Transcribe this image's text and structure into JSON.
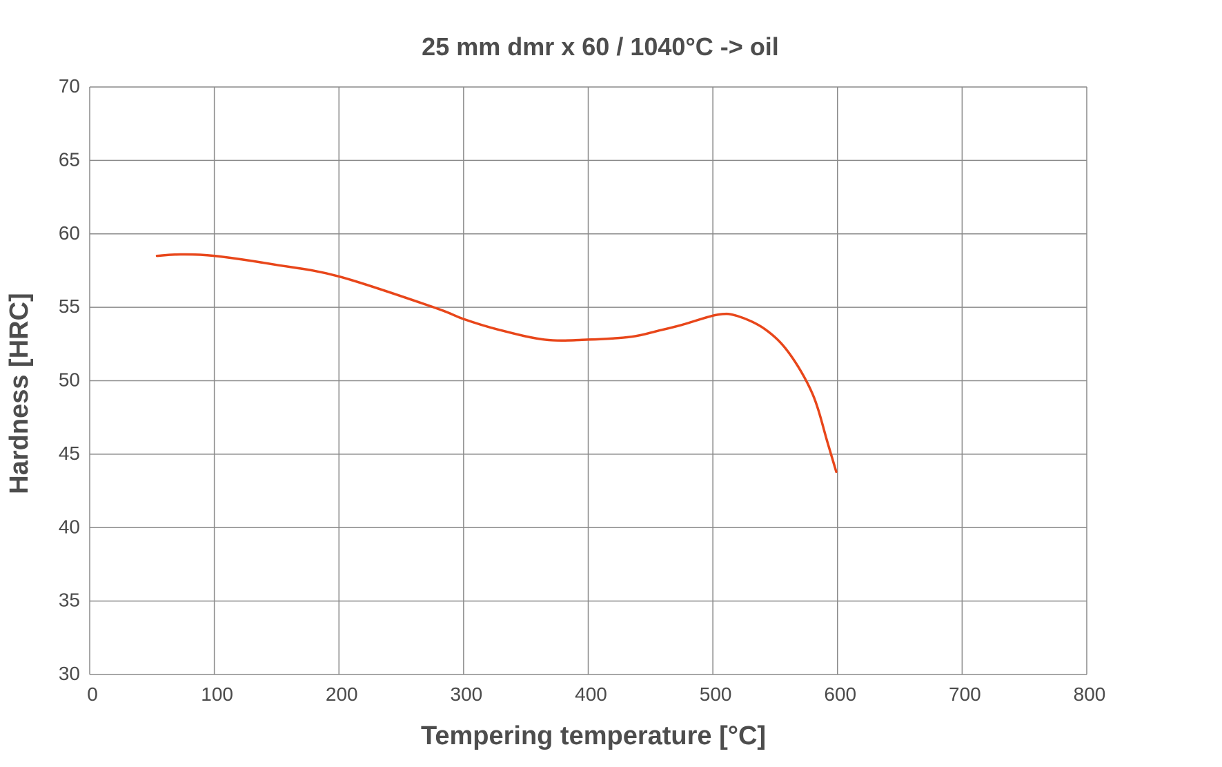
{
  "chart_data": {
    "type": "line",
    "title": "25 mm dmr x 60 / 1040°C -> oil",
    "xlabel": "Tempering temperature [°C]",
    "ylabel": "Hardness [HRC]",
    "xlim": [
      0,
      800
    ],
    "ylim": [
      30,
      70
    ],
    "xticks": [
      0,
      100,
      200,
      300,
      400,
      500,
      600,
      700,
      800
    ],
    "yticks": [
      30,
      35,
      40,
      45,
      50,
      55,
      60,
      65,
      70
    ],
    "grid": true,
    "series": [
      {
        "name": "Hardness",
        "color": "#e8461a",
        "x": [
          54,
          73,
          100,
          149,
          200,
          276,
          300,
          327,
          365,
          400,
          435,
          456,
          475,
          504,
          520,
          542,
          561,
          580,
          592,
          599
        ],
        "y": [
          58.5,
          58.6,
          58.5,
          57.9,
          57.1,
          55.0,
          54.2,
          53.5,
          52.8,
          52.8,
          53.0,
          53.4,
          53.8,
          54.5,
          54.4,
          53.5,
          51.9,
          49.1,
          45.8,
          43.8
        ]
      }
    ]
  }
}
